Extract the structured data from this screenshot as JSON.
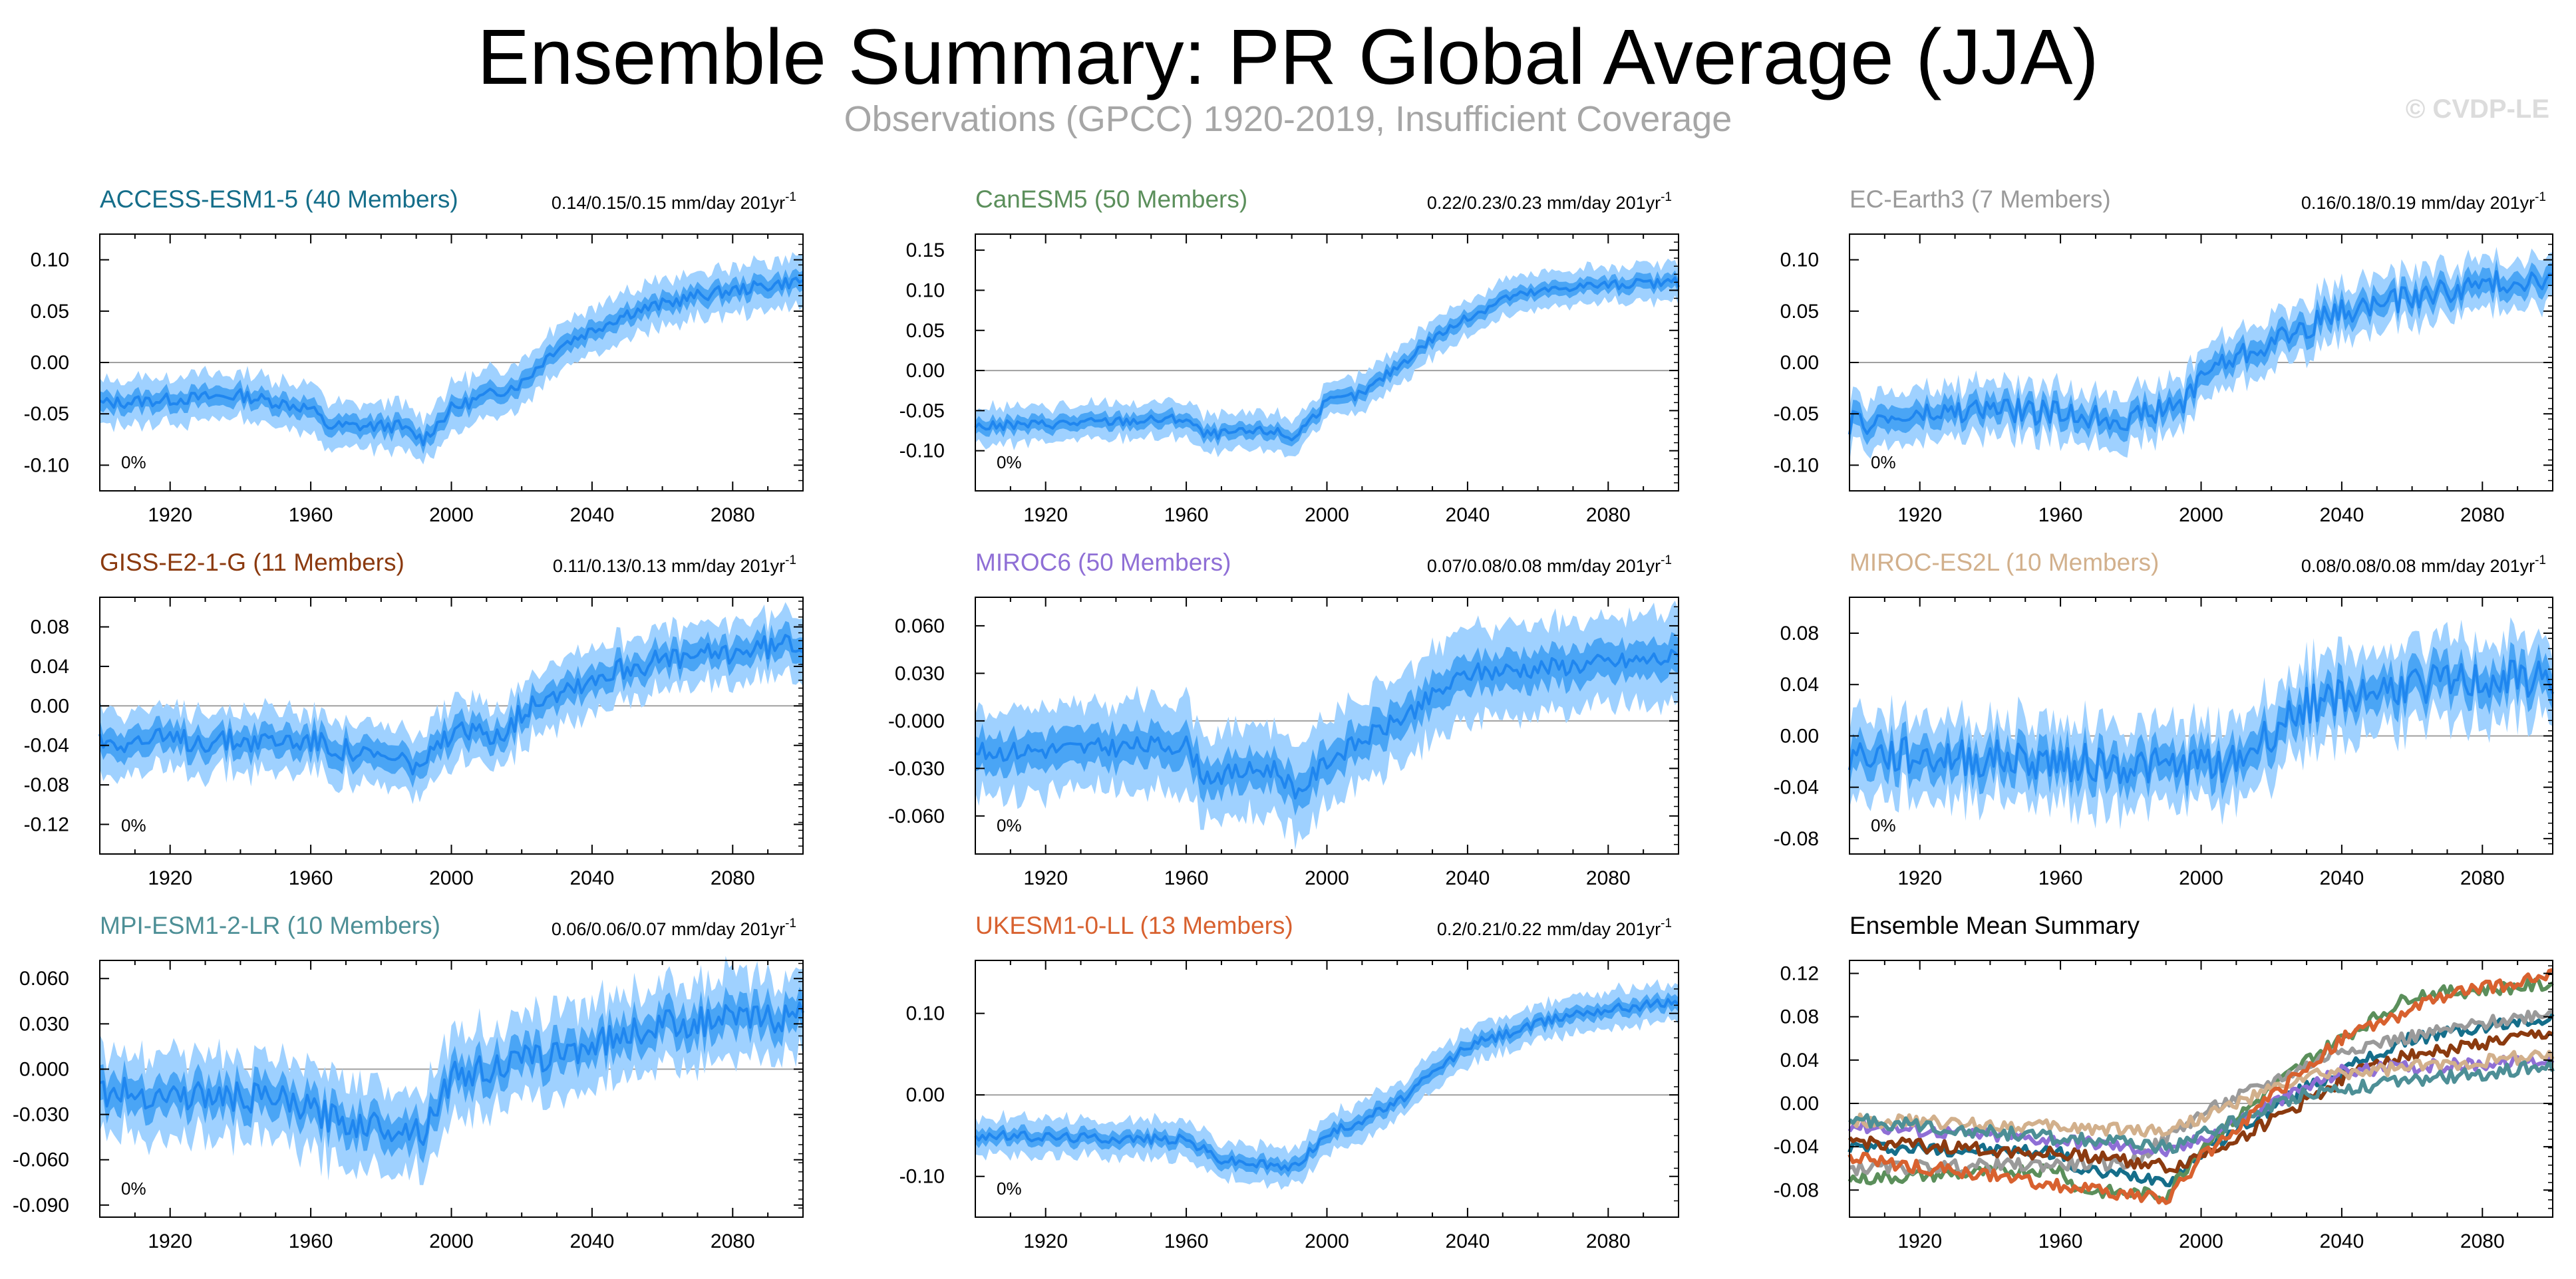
{
  "title": "Ensemble Summary: PR Global Average (JJA)",
  "subtitle": "Observations (GPCC) 1920-2019, Insufficient Coverage",
  "credit": "© CVDP-LE",
  "colors": {
    "band_outer": "#9fd1ff",
    "band_inner": "#4aa5f5",
    "line": "#1f86ef",
    "zero": "#a0a0a0"
  },
  "chart_data": [
    {
      "type": "line",
      "title": "ACCESS-ESM1-5 (40 Members)",
      "title_color": "#156e8a",
      "trend": "0.14/0.15/0.15 mm/day 201yr",
      "trend_sup": "-1",
      "pct_label": "0%",
      "x_ticks": [
        1920,
        1960,
        2000,
        2040,
        2080
      ],
      "xlim": [
        1900,
        2100
      ],
      "y_ticks": [
        0.1,
        0.05,
        0.0,
        -0.05,
        -0.1
      ],
      "y_tick_labels": [
        "0.10",
        "0.05",
        "0.00",
        "-0.05",
        "-0.10"
      ],
      "ylim": [
        -0.125,
        0.125
      ],
      "series_knots": [
        [
          1900,
          -0.04
        ],
        [
          1940,
          -0.032
        ],
        [
          1960,
          -0.045
        ],
        [
          1965,
          -0.062
        ],
        [
          1985,
          -0.062
        ],
        [
          1992,
          -0.075
        ],
        [
          2000,
          -0.045
        ],
        [
          2020,
          -0.02
        ],
        [
          2030,
          0.015
        ],
        [
          2050,
          0.048
        ],
        [
          2070,
          0.065
        ],
        [
          2100,
          0.08
        ]
      ],
      "noise": 0.006,
      "spread_inner": 0.008,
      "spread_outer": 0.018
    },
    {
      "type": "line",
      "title": "CanESM5 (50 Members)",
      "title_color": "#5b8f5b",
      "trend": "0.22/0.23/0.23 mm/day 201yr",
      "trend_sup": "-1",
      "pct_label": "0%",
      "x_ticks": [
        1920,
        1960,
        2000,
        2040,
        2080
      ],
      "xlim": [
        1900,
        2100
      ],
      "y_ticks": [
        0.15,
        0.1,
        0.05,
        0.0,
        -0.05,
        -0.1
      ],
      "y_tick_labels": [
        "0.15",
        "0.10",
        "0.05",
        "0.00",
        "-0.05",
        "-0.10"
      ],
      "ylim": [
        -0.15,
        0.17
      ],
      "series_knots": [
        [
          1900,
          -0.07
        ],
        [
          1960,
          -0.06
        ],
        [
          1965,
          -0.08
        ],
        [
          1985,
          -0.075
        ],
        [
          1990,
          -0.085
        ],
        [
          2000,
          -0.04
        ],
        [
          2010,
          -0.03
        ],
        [
          2030,
          0.04
        ],
        [
          2050,
          0.09
        ],
        [
          2070,
          0.105
        ],
        [
          2100,
          0.11
        ]
      ],
      "noise": 0.006,
      "spread_inner": 0.008,
      "spread_outer": 0.018
    },
    {
      "type": "line",
      "title": "EC-Earth3 (7 Members)",
      "title_color": "#9a9a9a",
      "trend": "0.16/0.18/0.19 mm/day 201yr",
      "trend_sup": "-1",
      "pct_label": "0%",
      "x_ticks": [
        1920,
        1960,
        2000,
        2040,
        2080
      ],
      "xlim": [
        1900,
        2100
      ],
      "y_ticks": [
        0.1,
        0.05,
        0.0,
        -0.05,
        -0.1
      ],
      "y_tick_labels": [
        "0.10",
        "0.05",
        "0.00",
        "-0.05",
        "-0.10"
      ],
      "ylim": [
        -0.125,
        0.125
      ],
      "series_knots": [
        [
          1900,
          -0.06
        ],
        [
          1940,
          -0.045
        ],
        [
          1980,
          -0.055
        ],
        [
          1995,
          -0.04
        ],
        [
          2000,
          -0.01
        ],
        [
          2020,
          0.02
        ],
        [
          2040,
          0.05
        ],
        [
          2070,
          0.07
        ],
        [
          2100,
          0.085
        ]
      ],
      "noise": 0.012,
      "spread_inner": 0.01,
      "spread_outer": 0.02
    },
    {
      "type": "line",
      "title": "GISS-E2-1-G (11 Members)",
      "title_color": "#8b3a0f",
      "trend": "0.11/0.13/0.13 mm/day 201yr",
      "trend_sup": "-1",
      "pct_label": "0%",
      "x_ticks": [
        1920,
        1960,
        2000,
        2040,
        2080
      ],
      "xlim": [
        1900,
        2100
      ],
      "y_ticks": [
        0.08,
        0.04,
        0.0,
        -0.04,
        -0.08,
        -0.12
      ],
      "y_tick_labels": [
        "0.08",
        "0.04",
        "0.00",
        "-0.04",
        "-0.08",
        "-0.12"
      ],
      "ylim": [
        -0.15,
        0.11
      ],
      "series_knots": [
        [
          1900,
          -0.035
        ],
        [
          1960,
          -0.035
        ],
        [
          1975,
          -0.05
        ],
        [
          1992,
          -0.06
        ],
        [
          2000,
          -0.03
        ],
        [
          2015,
          -0.025
        ],
        [
          2025,
          0.01
        ],
        [
          2050,
          0.04
        ],
        [
          2100,
          0.065
        ]
      ],
      "noise": 0.012,
      "spread_inner": 0.012,
      "spread_outer": 0.025
    },
    {
      "type": "line",
      "title": "MIROC6 (50 Members)",
      "title_color": "#8f6fd6",
      "trend": "0.07/0.08/0.08 mm/day 201yr",
      "trend_sup": "-1",
      "pct_label": "0%",
      "x_ticks": [
        1920,
        1960,
        2000,
        2040,
        2080
      ],
      "xlim": [
        1900,
        2100
      ],
      "y_ticks": [
        0.06,
        0.03,
        0.0,
        -0.03,
        -0.06
      ],
      "y_tick_labels": [
        "0.060",
        "0.030",
        "-0.000",
        "-0.030",
        "-0.060"
      ],
      "ylim": [
        -0.084,
        0.078
      ],
      "series_knots": [
        [
          1900,
          -0.02
        ],
        [
          1960,
          -0.015
        ],
        [
          1965,
          -0.035
        ],
        [
          1985,
          -0.03
        ],
        [
          1992,
          -0.045
        ],
        [
          2000,
          -0.025
        ],
        [
          2020,
          0.0
        ],
        [
          2040,
          0.03
        ],
        [
          2100,
          0.04
        ]
      ],
      "noise": 0.006,
      "spread_inner": 0.01,
      "spread_outer": 0.022
    },
    {
      "type": "line",
      "title": "MIROC-ES2L (10 Members)",
      "title_color": "#d2b08c",
      "trend": "0.08/0.08/0.08 mm/day 201yr",
      "trend_sup": "-1",
      "pct_label": "0%",
      "x_ticks": [
        1920,
        1960,
        2000,
        2040,
        2080
      ],
      "xlim": [
        1900,
        2100
      ],
      "y_ticks": [
        0.08,
        0.04,
        0.0,
        -0.04,
        -0.08
      ],
      "y_tick_labels": [
        "0.08",
        "0.04",
        "0.00",
        "-0.04",
        "-0.08"
      ],
      "ylim": [
        -0.092,
        0.108
      ],
      "series_knots": [
        [
          1900,
          -0.015
        ],
        [
          1960,
          -0.02
        ],
        [
          1990,
          -0.025
        ],
        [
          2010,
          -0.02
        ],
        [
          2030,
          0.025
        ],
        [
          2060,
          0.04
        ],
        [
          2100,
          0.045
        ]
      ],
      "noise": 0.015,
      "spread_inner": 0.012,
      "spread_outer": 0.025
    },
    {
      "type": "line",
      "title": "MPI-ESM1-2-LR (10 Members)",
      "title_color": "#4d8f96",
      "trend": "0.06/0.06/0.07 mm/day 201yr",
      "trend_sup": "-1",
      "pct_label": "0%",
      "x_ticks": [
        1920,
        1960,
        2000,
        2040,
        2080
      ],
      "xlim": [
        1900,
        2100
      ],
      "y_ticks": [
        0.06,
        0.03,
        0.0,
        -0.03,
        -0.06,
        -0.09
      ],
      "y_tick_labels": [
        "0.060",
        "0.030",
        "0.000",
        "-0.030",
        "-0.060",
        "-0.090"
      ],
      "ylim": [
        -0.098,
        0.072
      ],
      "series_knots": [
        [
          1900,
          -0.015
        ],
        [
          1950,
          -0.02
        ],
        [
          1970,
          -0.035
        ],
        [
          1992,
          -0.04
        ],
        [
          2000,
          -0.005
        ],
        [
          2030,
          0.01
        ],
        [
          2060,
          0.03
        ],
        [
          2100,
          0.035
        ]
      ],
      "noise": 0.01,
      "spread_inner": 0.01,
      "spread_outer": 0.022
    },
    {
      "type": "line",
      "title": "UKESM1-0-LL (13 Members)",
      "title_color": "#d8612f",
      "trend": "0.2/0.21/0.22 mm/day 201yr",
      "trend_sup": "-1",
      "pct_label": "0%",
      "x_ticks": [
        1920,
        1960,
        2000,
        2040,
        2080
      ],
      "xlim": [
        1900,
        2100
      ],
      "y_ticks": [
        0.1,
        0.0,
        -0.1
      ],
      "y_tick_labels": [
        "0.10",
        "0.00",
        "-0.10"
      ],
      "ylim": [
        -0.15,
        0.165
      ],
      "series_knots": [
        [
          1900,
          -0.05
        ],
        [
          1960,
          -0.055
        ],
        [
          1970,
          -0.08
        ],
        [
          1990,
          -0.09
        ],
        [
          2000,
          -0.05
        ],
        [
          2020,
          -0.01
        ],
        [
          2040,
          0.06
        ],
        [
          2070,
          0.1
        ],
        [
          2100,
          0.115
        ]
      ],
      "noise": 0.006,
      "spread_inner": 0.008,
      "spread_outer": 0.018
    },
    {
      "type": "line",
      "title": "Ensemble Mean Summary",
      "title_color": "#000000",
      "trend": "",
      "trend_sup": "",
      "pct_label": "",
      "x_ticks": [
        1920,
        1960,
        2000,
        2040,
        2080
      ],
      "xlim": [
        1900,
        2100
      ],
      "y_ticks": [
        0.12,
        0.08,
        0.04,
        0.0,
        -0.04,
        -0.08
      ],
      "y_tick_labels": [
        "0.12",
        "0.08",
        "0.04",
        "0.00",
        "-0.04",
        "-0.08"
      ],
      "ylim": [
        -0.105,
        0.132
      ],
      "series": [
        {
          "name": "ACCESS-ESM1-5",
          "color": "#156e8a",
          "knots": [
            [
              1900,
              -0.04
            ],
            [
              1960,
              -0.045
            ],
            [
              1965,
              -0.062
            ],
            [
              1992,
              -0.07
            ],
            [
              2000,
              -0.045
            ],
            [
              2030,
              0.015
            ],
            [
              2060,
              0.06
            ],
            [
              2100,
              0.08
            ]
          ]
        },
        {
          "name": "CanESM5",
          "color": "#5b8f5b",
          "knots": [
            [
              1900,
              -0.07
            ],
            [
              1960,
              -0.06
            ],
            [
              1965,
              -0.08
            ],
            [
              1990,
              -0.085
            ],
            [
              2000,
              -0.04
            ],
            [
              2030,
              0.04
            ],
            [
              2060,
              0.1
            ],
            [
              2100,
              0.11
            ]
          ]
        },
        {
          "name": "EC-Earth3",
          "color": "#9a9a9a",
          "knots": [
            [
              1900,
              -0.06
            ],
            [
              1980,
              -0.055
            ],
            [
              2000,
              -0.01
            ],
            [
              2040,
              0.05
            ],
            [
              2100,
              0.085
            ]
          ]
        },
        {
          "name": "GISS-E2-1-G",
          "color": "#8b3a0f",
          "knots": [
            [
              1900,
              -0.035
            ],
            [
              1975,
              -0.05
            ],
            [
              1992,
              -0.06
            ],
            [
              2015,
              -0.025
            ],
            [
              2050,
              0.04
            ],
            [
              2100,
              0.065
            ]
          ]
        },
        {
          "name": "MIROC6",
          "color": "#8f6fd6",
          "knots": [
            [
              1900,
              -0.02
            ],
            [
              1965,
              -0.035
            ],
            [
              1992,
              -0.045
            ],
            [
              2020,
              0.0
            ],
            [
              2040,
              0.03
            ],
            [
              2100,
              0.04
            ]
          ]
        },
        {
          "name": "MIROC-ES2L",
          "color": "#d2b08c",
          "knots": [
            [
              1900,
              -0.015
            ],
            [
              1990,
              -0.025
            ],
            [
              2030,
              0.025
            ],
            [
              2100,
              0.045
            ]
          ]
        },
        {
          "name": "MPI-ESM1-2-LR",
          "color": "#4d8f96",
          "knots": [
            [
              1900,
              -0.015
            ],
            [
              1970,
              -0.035
            ],
            [
              1992,
              -0.04
            ],
            [
              2030,
              0.01
            ],
            [
              2100,
              0.035
            ]
          ]
        },
        {
          "name": "UKESM1-0-LL",
          "color": "#d8612f",
          "knots": [
            [
              1900,
              -0.05
            ],
            [
              1970,
              -0.08
            ],
            [
              1990,
              -0.09
            ],
            [
              2000,
              -0.05
            ],
            [
              2040,
              0.06
            ],
            [
              2070,
              0.1
            ],
            [
              2100,
              0.118
            ]
          ]
        }
      ]
    }
  ]
}
